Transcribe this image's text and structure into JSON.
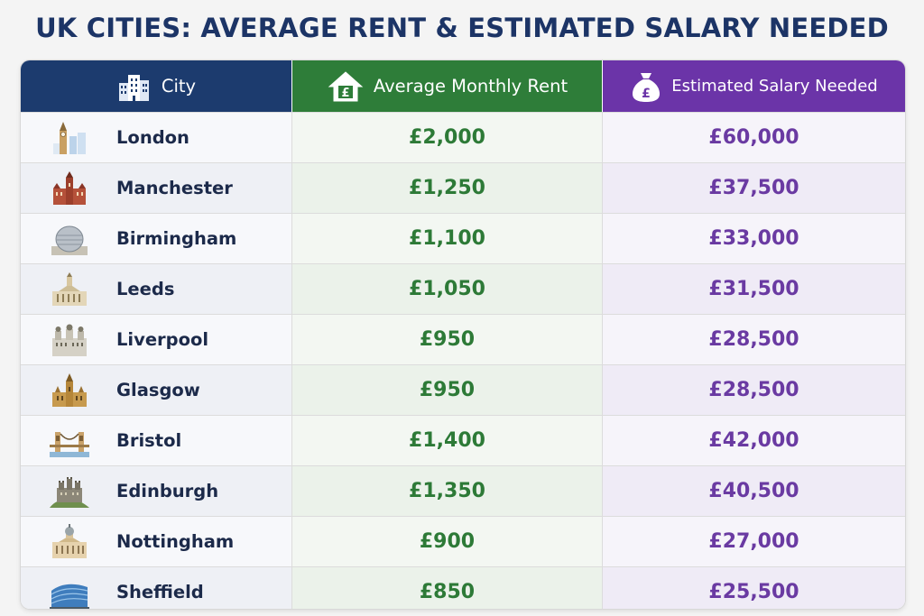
{
  "title": "UK CITIES: AVERAGE RENT & ESTIMATED SALARY NEEDED",
  "header": {
    "city": "City",
    "rent": "Average Monthly Rent",
    "salary": "Estimated Salary Needed",
    "city_icon": "buildings-icon",
    "rent_icon": "house-pound-icon",
    "salary_icon": "money-bag-pound-icon"
  },
  "colors": {
    "city_header": "#1c3b6e",
    "rent_header": "#2e7d39",
    "salary_header": "#6b34a8",
    "rent_text": "#2d7a37",
    "salary_text": "#6a3aa2"
  },
  "chart_data": {
    "type": "table",
    "title": "UK CITIES: AVERAGE RENT & ESTIMATED SALARY NEEDED",
    "columns": [
      "City",
      "Average Monthly Rent",
      "Estimated Salary Needed"
    ],
    "rows": [
      {
        "city": "London",
        "rent": "£2,000",
        "salary": "£60,000",
        "icon": "big-ben-icon"
      },
      {
        "city": "Manchester",
        "rent": "£1,250",
        "salary": "£37,500",
        "icon": "town-hall-icon"
      },
      {
        "city": "Birmingham",
        "rent": "£1,100",
        "salary": "£33,000",
        "icon": "bullring-icon"
      },
      {
        "city": "Leeds",
        "rent": "£1,050",
        "salary": "£31,500",
        "icon": "civic-hall-icon"
      },
      {
        "city": "Liverpool",
        "rent": "£950",
        "salary": "£28,500",
        "icon": "liver-building-icon"
      },
      {
        "city": "Glasgow",
        "rent": "£950",
        "salary": "£28,500",
        "icon": "cathedral-icon"
      },
      {
        "city": "Bristol",
        "rent": "£1,400",
        "salary": "£42,000",
        "icon": "bridge-icon"
      },
      {
        "city": "Edinburgh",
        "rent": "£1,350",
        "salary": "£40,500",
        "icon": "castle-icon"
      },
      {
        "city": "Nottingham",
        "rent": "£900",
        "salary": "£27,000",
        "icon": "council-house-icon"
      },
      {
        "city": "Sheffield",
        "rent": "£850",
        "salary": "£25,500",
        "icon": "modern-building-icon"
      }
    ]
  }
}
